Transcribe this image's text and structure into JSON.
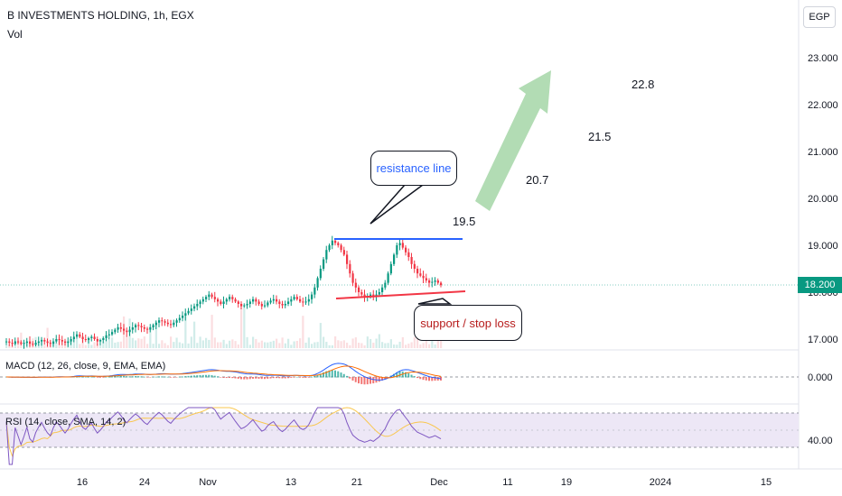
{
  "header": {
    "title": "B INVESTMENTS HOLDING, 1h, EGX",
    "volume_label": "Vol",
    "currency_button": "EGP"
  },
  "price_axis": {
    "labels": [
      "23.000",
      "22.000",
      "21.000",
      "20.000",
      "19.000",
      "18.000",
      "17.000"
    ],
    "current_price": "18.200"
  },
  "macd_panel": {
    "title": "MACD (12, 26, close, 9, EMA, EMA)",
    "axis_label": "0.000"
  },
  "rsi_panel": {
    "title": "RSI (14, close, SMA, 14, 2)",
    "axis_label": "40.00"
  },
  "time_axis": {
    "labels": [
      "16",
      "24",
      "Nov",
      "13",
      "21",
      "Dec",
      "11",
      "19",
      "2024",
      "15"
    ]
  },
  "annotations": {
    "resistance_label": "resistance line",
    "support_label": "support / stop loss",
    "targets": [
      "19.5",
      "20.7",
      "21.5",
      "22.8"
    ]
  },
  "colors": {
    "up": "#089981",
    "down": "#f23645",
    "resistance": "#2962ff",
    "support": "#f23645",
    "arrow": "#a5d6a7",
    "macd_line": "#2962ff",
    "signal_line": "#ff6d00",
    "rsi_line": "#7e57c2",
    "rsi_band": "#ede7f6"
  },
  "chart_data": {
    "type": "candlestick",
    "symbol": "B INVESTMENTS HOLDING",
    "interval": "1h",
    "exchange": "EGX",
    "ylim": [
      16.6,
      23.3
    ],
    "close_series": [
      16.95,
      16.92,
      16.9,
      16.95,
      16.93,
      16.9,
      16.92,
      16.95,
      16.9,
      16.88,
      16.92,
      16.95,
      16.98,
      16.95,
      16.92,
      16.9,
      16.95,
      17.0,
      16.98,
      16.95,
      16.92,
      16.95,
      17.0,
      17.05,
      17.1,
      17.05,
      17.0,
      16.98,
      17.02,
      17.05,
      17.0,
      16.95,
      16.98,
      17.02,
      17.08,
      17.1,
      17.15,
      17.2,
      17.25,
      17.22,
      17.18,
      17.15,
      17.2,
      17.25,
      17.3,
      17.28,
      17.25,
      17.22,
      17.2,
      17.25,
      17.3,
      17.35,
      17.4,
      17.38,
      17.35,
      17.32,
      17.3,
      17.35,
      17.4,
      17.45,
      17.5,
      17.55,
      17.6,
      17.65,
      17.7,
      17.75,
      17.8,
      17.85,
      17.9,
      17.95,
      17.9,
      17.85,
      17.8,
      17.75,
      17.8,
      17.85,
      17.9,
      17.85,
      17.8,
      17.75,
      17.7,
      17.72,
      17.75,
      17.8,
      17.85,
      17.8,
      17.75,
      17.7,
      17.72,
      17.78,
      17.82,
      17.85,
      17.8,
      17.75,
      17.72,
      17.75,
      17.8,
      17.85,
      17.9,
      17.85,
      17.8,
      17.78,
      17.8,
      17.85,
      17.95,
      18.1,
      18.3,
      18.5,
      18.7,
      18.9,
      19.0,
      19.1,
      19.05,
      19.0,
      18.9,
      18.8,
      18.6,
      18.4,
      18.2,
      18.1,
      18.0,
      17.95,
      17.9,
      17.92,
      17.95,
      17.9,
      17.95,
      18.0,
      18.1,
      18.2,
      18.4,
      18.6,
      18.8,
      19.0,
      19.05,
      18.95,
      18.85,
      18.75,
      18.6,
      18.5,
      18.4,
      18.35,
      18.3,
      18.25,
      18.2,
      18.22,
      18.25,
      18.2,
      18.15
    ],
    "resistance": 19.15,
    "support_start": 17.85,
    "support_end": 18.0,
    "targets": [
      19.5,
      20.7,
      21.5,
      22.8
    ],
    "current_price": 18.2,
    "rsi_levels": [
      70,
      30
    ]
  }
}
